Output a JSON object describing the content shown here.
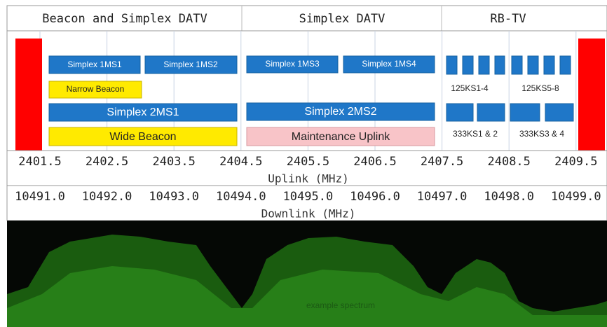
{
  "header": {
    "sections": [
      "Beacon and Simplex DATV",
      "Simplex DATV",
      "RB-TV"
    ]
  },
  "blocks": {
    "simplex_1ms1": "Simplex 1MS1",
    "simplex_1ms2": "Simplex 1MS2",
    "narrow_beacon": "Narrow Beacon",
    "simplex_2ms1": "Simplex 2MS1",
    "wide_beacon": "Wide Beacon",
    "simplex_1ms3": "Simplex 1MS3",
    "simplex_1ms4": "Simplex 1MS4",
    "simplex_2ms2": "Simplex 2MS2",
    "maintenance_uplink": "Maintenance Uplink",
    "rbtv_125_a": "125KS1-4",
    "rbtv_125_b": "125KS5-8",
    "rbtv_333_a": "333KS1 & 2",
    "rbtv_333_b": "333KS3 & 4"
  },
  "uplink": {
    "ticks": [
      "2401.5",
      "2402.5",
      "2403.5",
      "2404.5",
      "2405.5",
      "2406.5",
      "2407.5",
      "2408.5",
      "2409.5"
    ],
    "label": "Uplink (MHz)"
  },
  "downlink": {
    "ticks": [
      "10491.0",
      "10492.0",
      "10493.0",
      "10494.0",
      "10495.0",
      "10496.0",
      "10497.0",
      "10498.0",
      "10499.0"
    ],
    "label": "Downlink (MHz)"
  },
  "spectrum": {
    "label": "example spectrum"
  }
}
